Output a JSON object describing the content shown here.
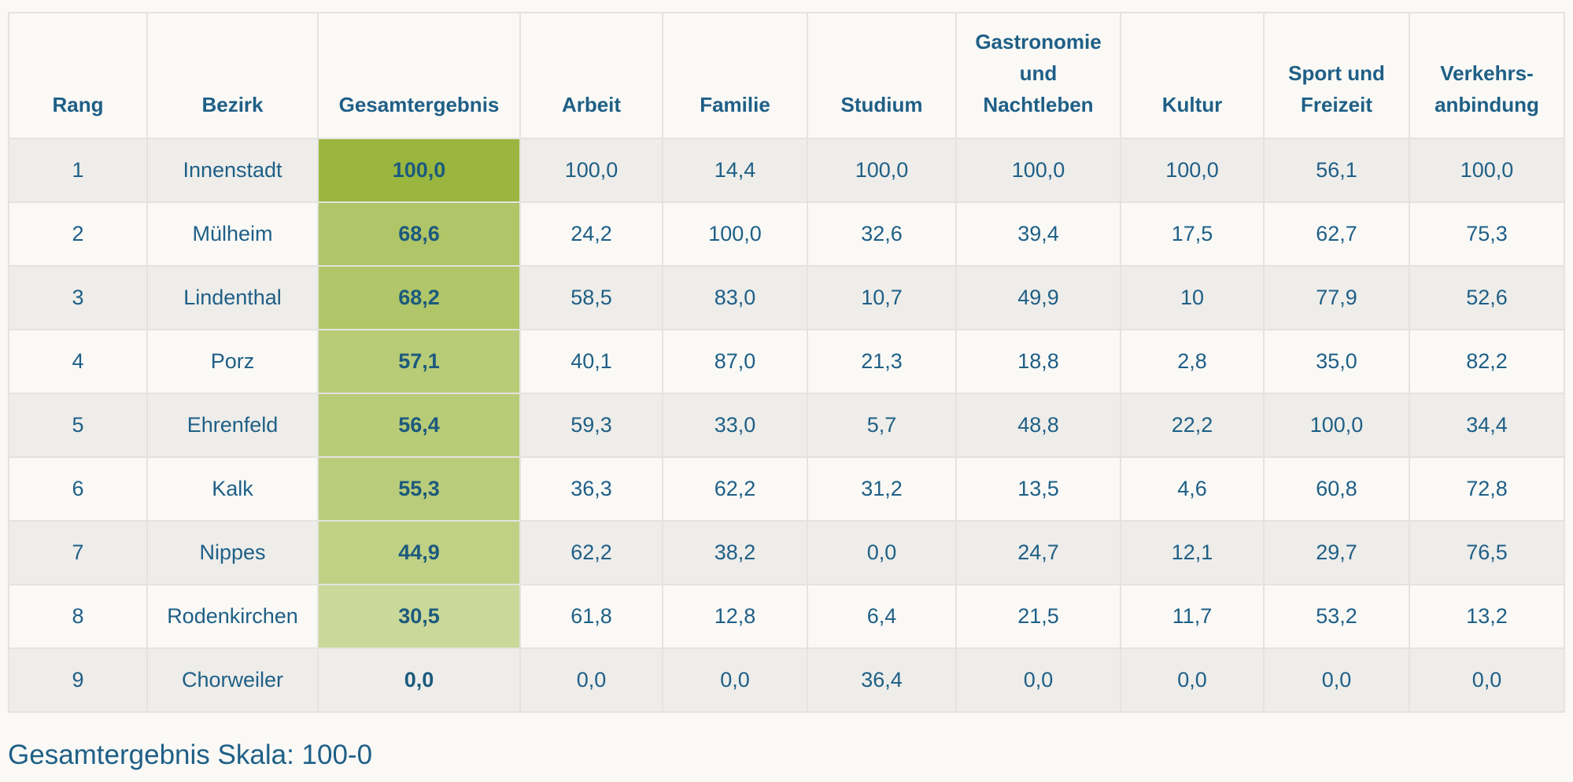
{
  "chart_data": {
    "type": "table",
    "columns": [
      "Rang",
      "Bezirk",
      "Gesamtergebnis",
      "Arbeit",
      "Familie",
      "Studium",
      "Gastronomie und Nachtleben",
      "Kultur",
      "Sport und Freizeit",
      "Verkehrs-anbindung"
    ],
    "column_lines": [
      [
        "Rang"
      ],
      [
        "Bezirk"
      ],
      [
        "Gesamtergebnis"
      ],
      [
        "Arbeit"
      ],
      [
        "Familie"
      ],
      [
        "Studium"
      ],
      [
        "Gastronomie",
        "und",
        "Nachtleben"
      ],
      [
        "Kultur"
      ],
      [
        "Sport und",
        "Freizeit"
      ],
      [
        "Verkehrs-",
        "anbindung"
      ]
    ],
    "rows": [
      [
        "1",
        "Innenstadt",
        "100,0",
        "100,0",
        "14,4",
        "100,0",
        "100,0",
        "100,0",
        "56,1",
        "100,0"
      ],
      [
        "2",
        "Mülheim",
        "68,6",
        "24,2",
        "100,0",
        "32,6",
        "39,4",
        "17,5",
        "62,7",
        "75,3"
      ],
      [
        "3",
        "Lindenthal",
        "68,2",
        "58,5",
        "83,0",
        "10,7",
        "49,9",
        "10",
        "77,9",
        "52,6"
      ],
      [
        "4",
        "Porz",
        "57,1",
        "40,1",
        "87,0",
        "21,3",
        "18,8",
        "2,8",
        "35,0",
        "82,2"
      ],
      [
        "5",
        "Ehrenfeld",
        "56,4",
        "59,3",
        "33,0",
        "5,7",
        "48,8",
        "22,2",
        "100,0",
        "34,4"
      ],
      [
        "6",
        "Kalk",
        "55,3",
        "36,3",
        "62,2",
        "31,2",
        "13,5",
        "4,6",
        "60,8",
        "72,8"
      ],
      [
        "7",
        "Nippes",
        "44,9",
        "62,2",
        "38,2",
        "0,0",
        "24,7",
        "12,1",
        "29,7",
        "76,5"
      ],
      [
        "8",
        "Rodenkirchen",
        "30,5",
        "61,8",
        "12,8",
        "6,4",
        "21,5",
        "11,7",
        "53,2",
        "13,2"
      ],
      [
        "9",
        "Chorweiler",
        "0,0",
        "0,0",
        "0,0",
        "36,4",
        "0,0",
        "0,0",
        "0,0",
        "0,0"
      ]
    ],
    "heatmap_column": "Gesamtergebnis",
    "heatmap_scale": [
      100,
      0
    ],
    "heatmap_colors": {
      "high": "#9ab63e",
      "low": "#dfe7c1",
      "zero": "#eeedea"
    }
  },
  "footer": {
    "scale_note": "Gesamtergebnis Skala: 100-0"
  }
}
